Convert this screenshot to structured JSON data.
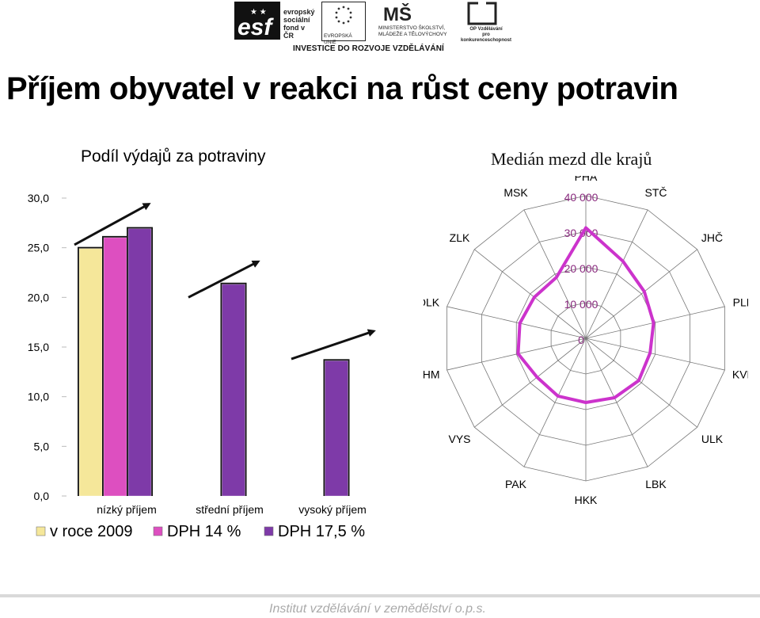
{
  "header": {
    "logo_esf_lines": [
      "evropský",
      "sociální",
      "fond v ČR"
    ],
    "logo_eu_label": "EVROPSKÁ UNIE",
    "logo_msmt_lines": [
      "MINISTERSTVO ŠKOLSTVÍ,",
      "MLÁDEŽE A TĚLOVÝCHOVY"
    ],
    "logo_op_lines": [
      "OP Vzdělávání",
      "pro konkurenceschopnost"
    ],
    "invest_text": "INVESTICE DO ROZVOJE VZDĚLÁVÁNÍ",
    "colors": {
      "esf_dark": "#111111",
      "eu_blue": "#ffffff"
    }
  },
  "page_title": "Příjem obyvatel v reakci na růst ceny potravin",
  "footer": "Institut vzdělávání v zemědělství o.p.s.",
  "chart_data": [
    {
      "type": "bar",
      "title": "Podíl výdajů za potraviny",
      "categories": [
        "nízký příjem",
        "střední příjem",
        "vysoký příjem"
      ],
      "ylim": [
        0,
        30
      ],
      "yticks": [
        "0,0",
        "5,0",
        "10,0",
        "15,0",
        "20,0",
        "25,0",
        "30,0"
      ],
      "series": [
        {
          "name": "v roce 2009",
          "color": "#f5e79a",
          "values": [
            25.0,
            null,
            null
          ]
        },
        {
          "name": "DPH  14  %",
          "color": "#dd4fc0",
          "values": [
            26.1,
            null,
            null
          ]
        },
        {
          "name": "DPH  17,5  %",
          "color": "#7e3aa8",
          "values": [
            27.0,
            21.4,
            13.7
          ]
        }
      ],
      "annotations": "arrows indicating increase",
      "legend": "bottom",
      "grid": false
    },
    {
      "type": "radar",
      "title": "Medián mezd dle krajů",
      "categories": [
        "PHA",
        "STČ",
        "JHČ",
        "PLK",
        "KVK",
        "ULK",
        "LBK",
        "HKK",
        "PAK",
        "VYS",
        "JHM",
        "OLK",
        "ZLK",
        "MSK"
      ],
      "rlim": [
        0,
        40000
      ],
      "rticks": [
        "0",
        "10 000",
        "20 000",
        "30 000",
        "40 000"
      ],
      "series": [
        {
          "color": "#cc33cc",
          "values": [
            31000,
            24000,
            21000,
            19500,
            18500,
            19000,
            18500,
            18000,
            18000,
            17500,
            19500,
            19000,
            18500,
            19000
          ]
        }
      ],
      "grid": true
    }
  ]
}
